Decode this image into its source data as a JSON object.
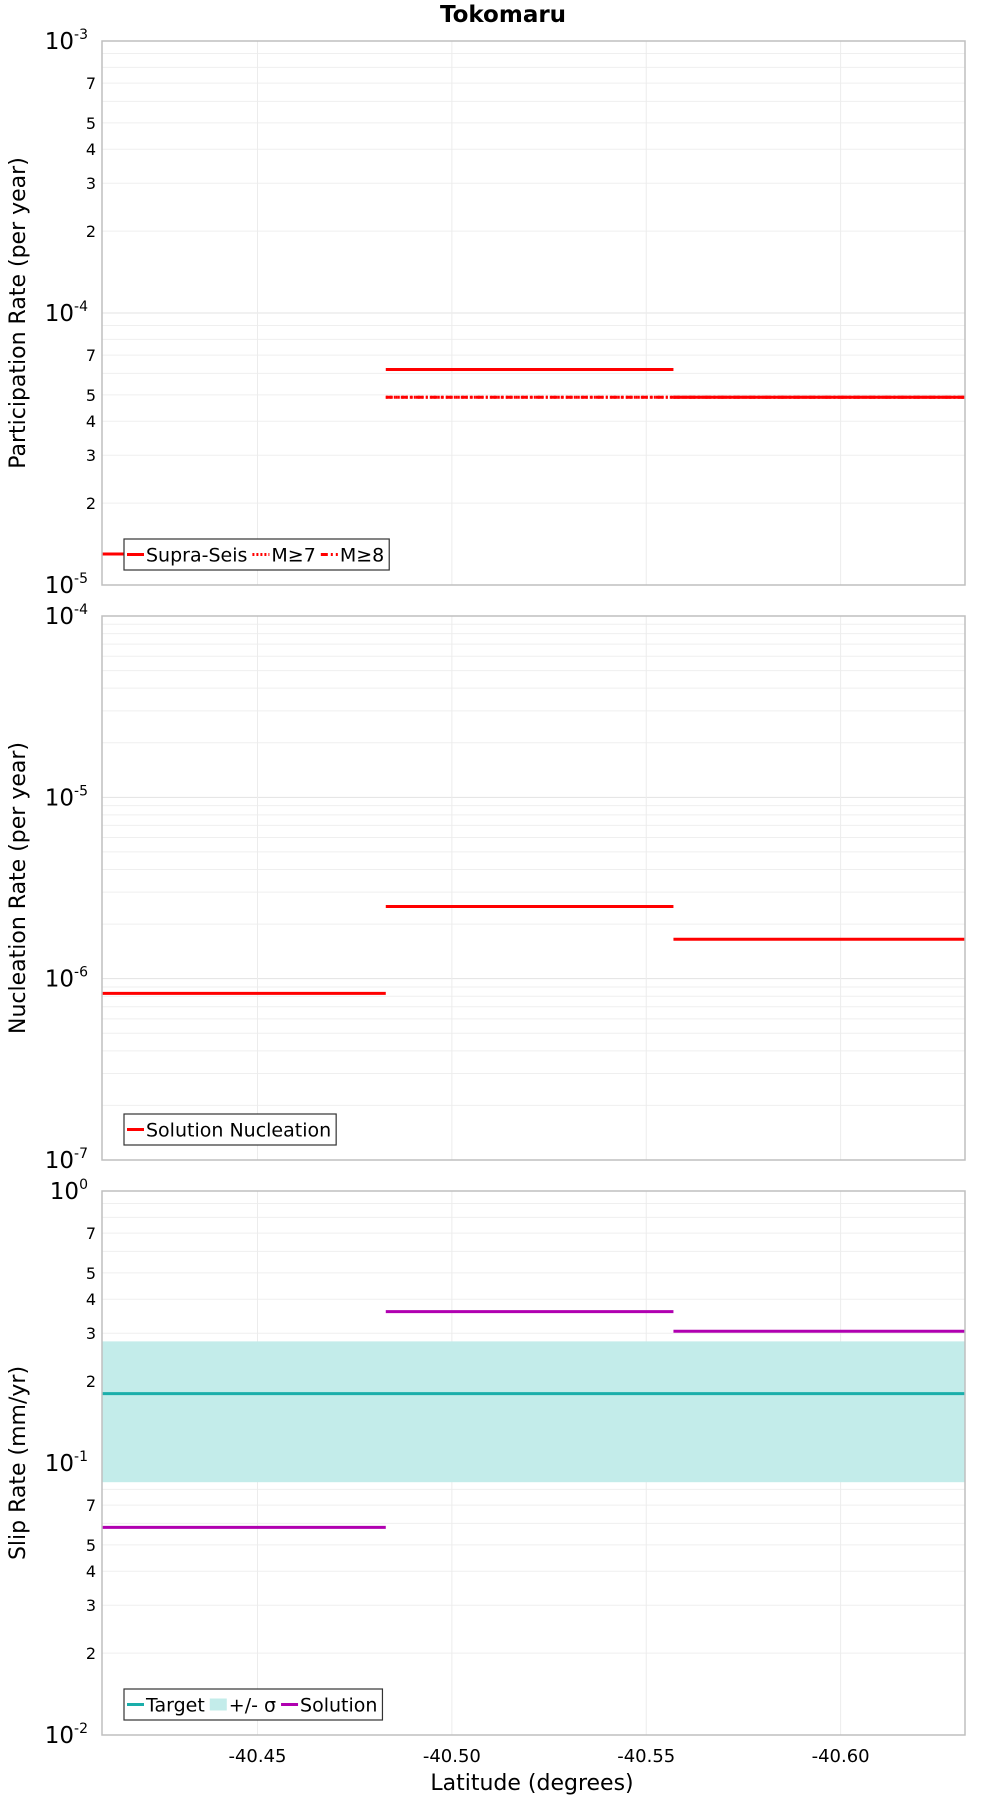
{
  "figure": {
    "title": "Tokomaru",
    "xlabel": "Latitude (degrees)"
  },
  "chart_data": [
    {
      "type": "line",
      "panel": "participation",
      "ylabel": "Participation Rate (per year)",
      "xlim": [
        -40.41,
        -40.632
      ],
      "ylim": [
        1e-05,
        0.001
      ],
      "yscale": "log",
      "x_ticks": [
        -40.45,
        -40.5,
        -40.55,
        -40.6
      ],
      "x_tick_labels": [
        "-40.45",
        "-40.50",
        "-40.55",
        "-40.60"
      ],
      "legend": {
        "entries": [
          "Supra-Seis",
          "M≥7",
          "M≥8"
        ],
        "location": "bottom-left"
      },
      "series": [
        {
          "name": "Supra-Seis",
          "style": "solid",
          "color": "#ff0000",
          "segments": [
            [
              -40.41,
              -40.483,
              1.3e-05
            ],
            [
              -40.483,
              -40.557,
              6.2e-05
            ],
            [
              -40.557,
              -40.632,
              4.9e-05
            ]
          ]
        },
        {
          "name": "M≥7",
          "style": "dotted",
          "color": "#ff0000",
          "segments": [
            [
              -40.41,
              -40.483,
              1.3e-05
            ],
            [
              -40.483,
              -40.557,
              4.9e-05
            ],
            [
              -40.557,
              -40.632,
              4.9e-05
            ]
          ]
        },
        {
          "name": "M≥8",
          "style": "dashdot",
          "color": "#ff0000",
          "segments": [
            [
              -40.483,
              -40.557,
              4.9e-05
            ],
            [
              -40.557,
              -40.632,
              4.9e-05
            ]
          ]
        }
      ]
    },
    {
      "type": "line",
      "panel": "nucleation",
      "ylabel": "Nucleation Rate (per year)",
      "xlim": [
        -40.41,
        -40.632
      ],
      "ylim": [
        1e-07,
        0.0001
      ],
      "yscale": "log",
      "x_ticks": [
        -40.45,
        -40.5,
        -40.55,
        -40.6
      ],
      "x_tick_labels": [
        "-40.45",
        "-40.50",
        "-40.55",
        "-40.60"
      ],
      "legend": {
        "entries": [
          "Solution Nucleation"
        ],
        "location": "bottom-left"
      },
      "series": [
        {
          "name": "Solution Nucleation",
          "style": "solid",
          "color": "#ff0000",
          "segments": [
            [
              -40.41,
              -40.483,
              8.3e-07
            ],
            [
              -40.483,
              -40.557,
              2.5e-06
            ],
            [
              -40.557,
              -40.632,
              1.65e-06
            ]
          ]
        }
      ]
    },
    {
      "type": "line",
      "panel": "slip",
      "ylabel": "Slip Rate (mm/yr)",
      "xlim": [
        -40.41,
        -40.632
      ],
      "ylim": [
        0.01,
        1
      ],
      "yscale": "log",
      "x_ticks": [
        -40.45,
        -40.5,
        -40.55,
        -40.6
      ],
      "x_tick_labels": [
        "-40.45",
        "-40.50",
        "-40.55",
        "-40.60"
      ],
      "legend": {
        "entries": [
          "Target",
          "+/- σ",
          "Solution"
        ],
        "location": "bottom-left"
      },
      "band": {
        "name": "+/- σ",
        "low": 0.085,
        "high": 0.28,
        "x": [
          -40.41,
          -40.632
        ],
        "color": "#c3ecea"
      },
      "series": [
        {
          "name": "Target",
          "style": "solid",
          "color": "#1aaeaa",
          "segments": [
            [
              -40.41,
              -40.632,
              0.18
            ]
          ]
        },
        {
          "name": "Solution",
          "style": "solid",
          "color": "#b000b0",
          "segments": [
            [
              -40.41,
              -40.483,
              0.058
            ],
            [
              -40.483,
              -40.557,
              0.36
            ],
            [
              -40.557,
              -40.632,
              0.305
            ]
          ]
        }
      ]
    }
  ]
}
